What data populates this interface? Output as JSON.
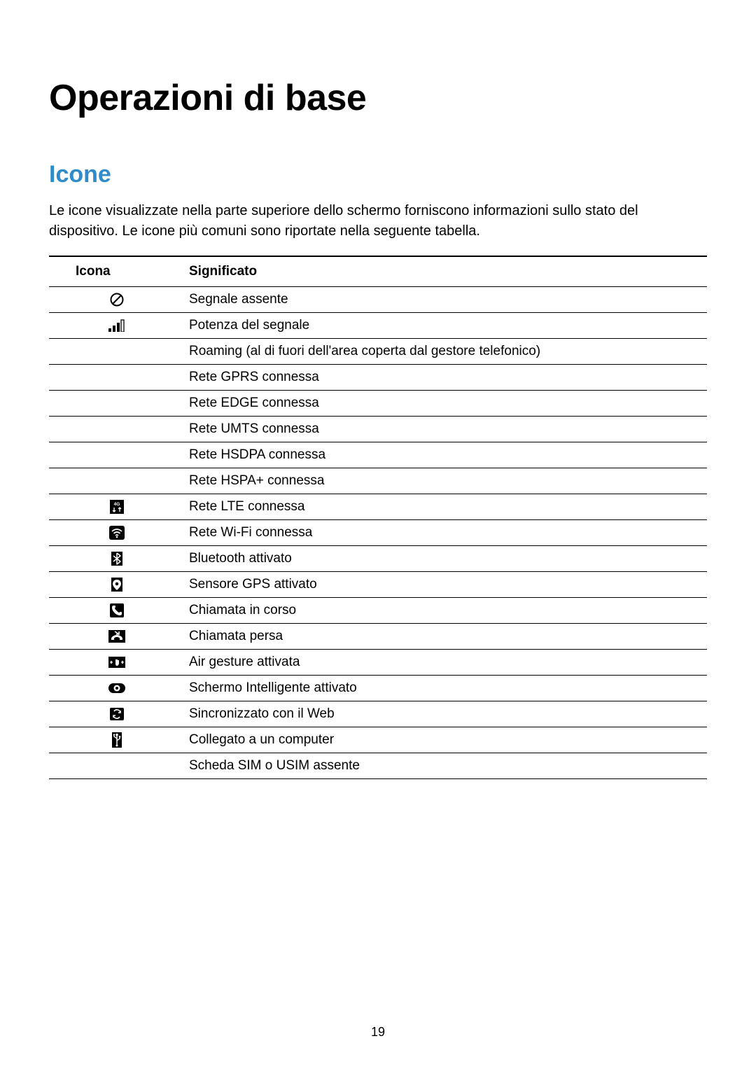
{
  "page": {
    "title": "Operazioni di base",
    "section_heading": "Icone",
    "section_heading_color": "#2f8bc9",
    "intro_text": "Le icone visualizzate nella parte superiore dello schermo forniscono informazioni sullo stato del dispositivo. Le icone più comuni sono riportate nella seguente tabella.",
    "page_number": "19"
  },
  "table": {
    "header_icon": "Icona",
    "header_meaning": "Significato",
    "rows": [
      {
        "icon": "no-signal",
        "meaning": "Segnale assente"
      },
      {
        "icon": "signal-bars",
        "meaning": "Potenza del segnale"
      },
      {
        "icon": "",
        "meaning": "Roaming (al di fuori dell'area coperta dal gestore telefonico)"
      },
      {
        "icon": "",
        "meaning": "Rete GPRS connessa"
      },
      {
        "icon": "",
        "meaning": "Rete EDGE connessa"
      },
      {
        "icon": "",
        "meaning": "Rete UMTS connessa"
      },
      {
        "icon": "",
        "meaning": "Rete HSDPA connessa"
      },
      {
        "icon": "",
        "meaning": "Rete HSPA+ connessa"
      },
      {
        "icon": "lte-4g",
        "meaning": "Rete LTE connessa"
      },
      {
        "icon": "wifi",
        "meaning": "Rete Wi-Fi connessa"
      },
      {
        "icon": "bluetooth",
        "meaning": "Bluetooth attivato"
      },
      {
        "icon": "gps",
        "meaning": "Sensore GPS attivato"
      },
      {
        "icon": "call",
        "meaning": "Chiamata in corso"
      },
      {
        "icon": "missed-call",
        "meaning": "Chiamata persa"
      },
      {
        "icon": "air-gesture",
        "meaning": "Air gesture attivata"
      },
      {
        "icon": "smart-screen",
        "meaning": "Schermo Intelligente attivato"
      },
      {
        "icon": "sync",
        "meaning": "Sincronizzato con il Web"
      },
      {
        "icon": "usb",
        "meaning": "Collegato a un computer"
      },
      {
        "icon": "",
        "meaning": "Scheda SIM o USIM assente"
      }
    ]
  },
  "style": {
    "title_fontsize": 52,
    "heading_fontsize": 34,
    "body_fontsize": 20,
    "table_fontsize": 19,
    "border_color": "#000000",
    "background_color": "#ffffff"
  }
}
